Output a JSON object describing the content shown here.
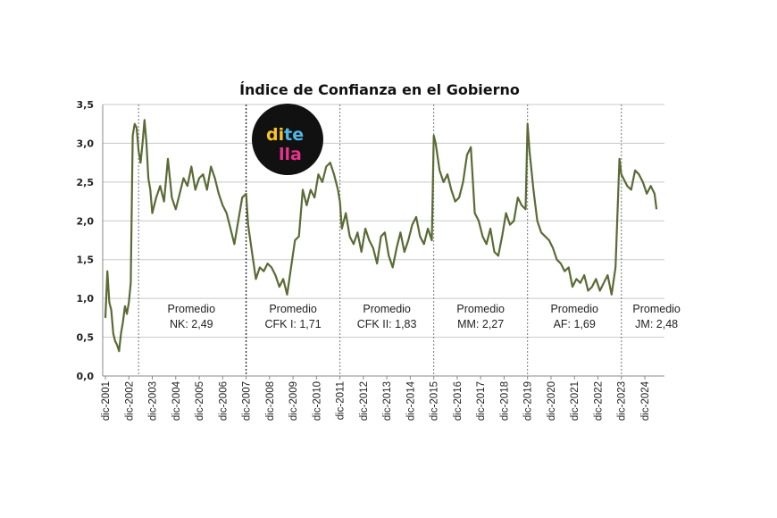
{
  "chart_data": {
    "type": "line",
    "title": "Índice de Confianza en el Gobierno",
    "xlabel": "",
    "ylabel": "",
    "ylim": [
      0,
      3.5
    ],
    "xlim": [
      "2001-12",
      "2024-12"
    ],
    "grid": true,
    "y_ticks": [
      "0,0",
      "0,5",
      "1,0",
      "1,5",
      "2,0",
      "2,5",
      "3,0",
      "3,5"
    ],
    "x_ticks": [
      "dic-2001",
      "dic-2002",
      "dic-2003",
      "dic-2004",
      "dic-2005",
      "dic-2006",
      "dic-2007",
      "dic-2008",
      "dic-2009",
      "dic-2010",
      "dic-2011",
      "dic-2012",
      "dic-2013",
      "dic-2014",
      "dic-2015",
      "dic-2016",
      "dic-2017",
      "dic-2018",
      "dic-2019",
      "dic-2020",
      "dic-2021",
      "dic-2022",
      "dic-2023",
      "dic-2024"
    ],
    "line_color": "#5a6b35",
    "divider_dates": [
      "2003-05",
      "2007-12",
      "2011-12",
      "2015-12",
      "2019-12",
      "2023-12"
    ],
    "periods": [
      {
        "line1": "Promedio",
        "line2": "NK: 2,49",
        "center": "2005-08"
      },
      {
        "line1": "Promedio",
        "line2": "CFK I: 1,71",
        "center": "2009-12"
      },
      {
        "line1": "Promedio",
        "line2": "CFK II: 1,83",
        "center": "2013-12"
      },
      {
        "line1": "Promedio",
        "line2": "MM: 2,27",
        "center": "2017-12"
      },
      {
        "line1": "Promedio",
        "line2": "AF: 1,69",
        "center": "2021-12"
      },
      {
        "line1": "Promedio",
        "line2": "JM: 2,48",
        "center": "2025-06"
      }
    ],
    "series": [
      {
        "x": [
          "2001-12",
          "2002-01",
          "2002-02",
          "2002-03",
          "2002-04",
          "2002-05",
          "2002-06",
          "2002-07",
          "2002-08",
          "2002-09",
          "2002-10",
          "2002-11",
          "2002-12",
          "2003-01",
          "2003-02",
          "2003-03",
          "2003-04",
          "2003-05",
          "2003-06",
          "2003-07",
          "2003-08",
          "2003-09",
          "2003-10",
          "2003-11",
          "2003-12",
          "2004-02",
          "2004-04",
          "2004-06",
          "2004-08",
          "2004-10",
          "2004-12",
          "2005-02",
          "2005-04",
          "2005-06",
          "2005-08",
          "2005-10",
          "2005-12",
          "2006-02",
          "2006-04",
          "2006-06",
          "2006-08",
          "2006-10",
          "2006-12",
          "2007-02",
          "2007-04",
          "2007-06",
          "2007-08",
          "2007-10",
          "2007-12",
          "2008-01",
          "2008-03",
          "2008-05",
          "2008-07",
          "2008-09",
          "2008-11",
          "2009-01",
          "2009-03",
          "2009-05",
          "2009-07",
          "2009-09",
          "2009-11",
          "2010-01",
          "2010-03",
          "2010-05",
          "2010-07",
          "2010-09",
          "2010-11",
          "2011-01",
          "2011-03",
          "2011-05",
          "2011-07",
          "2011-09",
          "2011-11",
          "2011-12",
          "2012-01",
          "2012-03",
          "2012-05",
          "2012-07",
          "2012-09",
          "2012-11",
          "2013-01",
          "2013-03",
          "2013-05",
          "2013-07",
          "2013-09",
          "2013-11",
          "2014-01",
          "2014-03",
          "2014-05",
          "2014-07",
          "2014-09",
          "2014-11",
          "2015-01",
          "2015-03",
          "2015-05",
          "2015-07",
          "2015-09",
          "2015-11",
          "2015-12",
          "2016-01",
          "2016-03",
          "2016-05",
          "2016-07",
          "2016-09",
          "2016-11",
          "2017-01",
          "2017-03",
          "2017-05",
          "2017-07",
          "2017-09",
          "2017-11",
          "2018-01",
          "2018-03",
          "2018-05",
          "2018-07",
          "2018-09",
          "2018-11",
          "2019-01",
          "2019-03",
          "2019-05",
          "2019-07",
          "2019-09",
          "2019-11",
          "2019-12",
          "2020-01",
          "2020-03",
          "2020-05",
          "2020-07",
          "2020-09",
          "2020-11",
          "2021-01",
          "2021-03",
          "2021-05",
          "2021-07",
          "2021-09",
          "2021-11",
          "2022-01",
          "2022-03",
          "2022-05",
          "2022-07",
          "2022-09",
          "2022-11",
          "2023-01",
          "2023-03",
          "2023-05",
          "2023-07",
          "2023-09",
          "2023-11",
          "2023-12",
          "2024-01",
          "2024-03",
          "2024-05",
          "2024-07",
          "2024-09",
          "2024-11",
          "2025-01",
          "2025-03",
          "2025-05",
          "2025-06"
        ],
        "y": [
          0.75,
          1.35,
          0.95,
          0.85,
          0.55,
          0.45,
          0.4,
          0.32,
          0.55,
          0.7,
          0.9,
          0.8,
          0.95,
          1.2,
          3.1,
          3.25,
          3.2,
          2.9,
          2.75,
          3.0,
          3.3,
          3.0,
          2.55,
          2.4,
          2.1,
          2.3,
          2.45,
          2.25,
          2.8,
          2.3,
          2.15,
          2.35,
          2.55,
          2.45,
          2.7,
          2.4,
          2.55,
          2.6,
          2.4,
          2.7,
          2.55,
          2.35,
          2.2,
          2.1,
          1.9,
          1.7,
          2.0,
          2.3,
          2.35,
          1.95,
          1.6,
          1.25,
          1.4,
          1.35,
          1.45,
          1.4,
          1.3,
          1.15,
          1.25,
          1.05,
          1.4,
          1.75,
          1.8,
          2.4,
          2.2,
          2.4,
          2.3,
          2.6,
          2.5,
          2.7,
          2.75,
          2.6,
          2.4,
          2.25,
          1.9,
          2.1,
          1.8,
          1.7,
          1.85,
          1.6,
          1.9,
          1.75,
          1.65,
          1.45,
          1.8,
          1.85,
          1.55,
          1.4,
          1.65,
          1.85,
          1.6,
          1.75,
          1.95,
          2.05,
          1.8,
          1.7,
          1.9,
          1.75,
          3.1,
          3.0,
          2.65,
          2.5,
          2.6,
          2.4,
          2.25,
          2.3,
          2.5,
          2.85,
          2.95,
          2.1,
          2.0,
          1.8,
          1.7,
          1.9,
          1.6,
          1.55,
          1.8,
          2.1,
          1.95,
          2.0,
          2.3,
          2.2,
          2.15,
          3.25,
          2.9,
          2.4,
          2.0,
          1.85,
          1.8,
          1.75,
          1.65,
          1.5,
          1.45,
          1.35,
          1.4,
          1.15,
          1.25,
          1.2,
          1.3,
          1.1,
          1.15,
          1.25,
          1.1,
          1.2,
          1.3,
          1.05,
          1.4,
          2.8,
          2.6,
          2.55,
          2.45,
          2.4,
          2.65,
          2.6,
          2.5,
          2.35,
          2.45,
          2.35,
          2.15
        ]
      }
    ]
  },
  "logo": {
    "line1_a": "di",
    "line1_b": "te",
    "line2": "lla",
    "colors": [
      "#f9c521",
      "#4fb7e6",
      "#e9318d"
    ]
  }
}
